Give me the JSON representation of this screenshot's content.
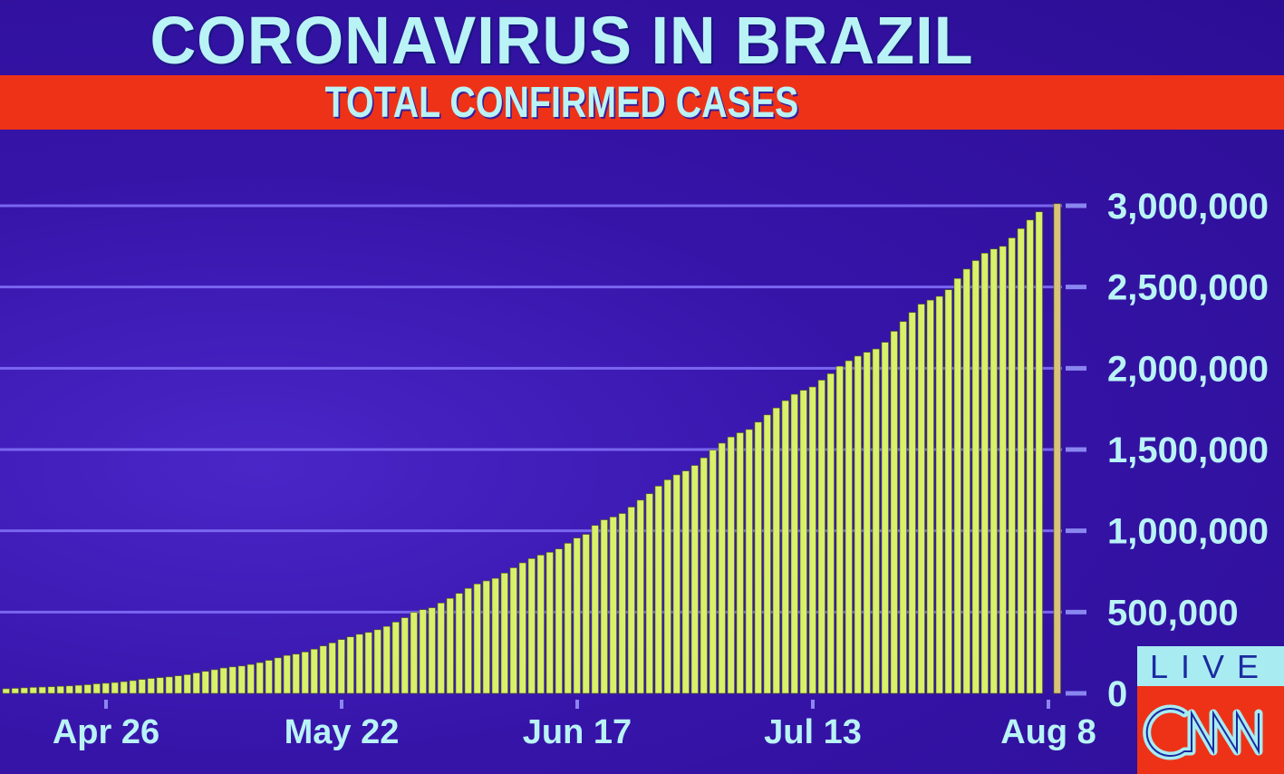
{
  "header": {
    "title": "CORONAVIRUS IN BRAZIL",
    "subtitle": "TOTAL CONFIRMED CASES"
  },
  "badge": {
    "live_label": "LIVE",
    "logo_text": "CNN"
  },
  "colors": {
    "background": "#3614a8",
    "band": "#ee3218",
    "text": "#b9f3f6",
    "bar": "#d8f06a",
    "highlight_bar": "#d9c27a",
    "grid": "#7a66f0"
  },
  "chart_data": {
    "type": "bar",
    "title": "CORONAVIRUS IN BRAZIL",
    "subtitle": "TOTAL CONFIRMED CASES",
    "xlabel": "",
    "ylabel": "",
    "ylim": [
      0,
      3000000
    ],
    "grid": true,
    "y_axis_side": "right",
    "yticks": [
      0,
      500000,
      1000000,
      1500000,
      2000000,
      2500000,
      3000000
    ],
    "ytick_labels": [
      "0",
      "500,000",
      "1,000,000",
      "1,500,000",
      "2,000,000",
      "2,500,000",
      "3,000,000"
    ],
    "xtick_labels": [
      "Apr 26",
      "May 22",
      "Jun 17",
      "Jul 13",
      "Aug 8"
    ],
    "highlight_last": true,
    "categories": [
      "Apr 15",
      "Apr 16",
      "Apr 17",
      "Apr 18",
      "Apr 19",
      "Apr 20",
      "Apr 21",
      "Apr 22",
      "Apr 23",
      "Apr 24",
      "Apr 25",
      "Apr 26",
      "Apr 27",
      "Apr 28",
      "Apr 29",
      "Apr 30",
      "May 1",
      "May 2",
      "May 3",
      "May 4",
      "May 5",
      "May 6",
      "May 7",
      "May 8",
      "May 9",
      "May 10",
      "May 11",
      "May 12",
      "May 13",
      "May 14",
      "May 15",
      "May 16",
      "May 17",
      "May 18",
      "May 19",
      "May 20",
      "May 21",
      "May 22",
      "May 23",
      "May 24",
      "May 25",
      "May 26",
      "May 27",
      "May 28",
      "May 29",
      "May 30",
      "May 31",
      "Jun 1",
      "Jun 2",
      "Jun 3",
      "Jun 4",
      "Jun 5",
      "Jun 6",
      "Jun 7",
      "Jun 8",
      "Jun 9",
      "Jun 10",
      "Jun 11",
      "Jun 12",
      "Jun 13",
      "Jun 14",
      "Jun 15",
      "Jun 16",
      "Jun 17",
      "Jun 18",
      "Jun 19",
      "Jun 20",
      "Jun 21",
      "Jun 22",
      "Jun 23",
      "Jun 24",
      "Jun 25",
      "Jun 26",
      "Jun 27",
      "Jun 28",
      "Jun 29",
      "Jun 30",
      "Jul 1",
      "Jul 2",
      "Jul 3",
      "Jul 4",
      "Jul 5",
      "Jul 6",
      "Jul 7",
      "Jul 8",
      "Jul 9",
      "Jul 10",
      "Jul 11",
      "Jul 12",
      "Jul 13",
      "Jul 14",
      "Jul 15",
      "Jul 16",
      "Jul 17",
      "Jul 18",
      "Jul 19",
      "Jul 20",
      "Jul 21",
      "Jul 22",
      "Jul 23",
      "Jul 24",
      "Jul 25",
      "Jul 26",
      "Jul 27",
      "Jul 28",
      "Jul 29",
      "Jul 30",
      "Jul 31",
      "Aug 1",
      "Aug 2",
      "Aug 3",
      "Aug 4",
      "Aug 5",
      "Aug 6",
      "Aug 7",
      "Aug 8"
    ],
    "values": [
      28320,
      30683,
      33682,
      36599,
      38654,
      40581,
      43079,
      45757,
      49492,
      52995,
      58509,
      61888,
      66501,
      71886,
      78162,
      85380,
      91589,
      96559,
      101147,
      107780,
      114715,
      125218,
      135106,
      145328,
      155939,
      162699,
      168331,
      177589,
      188974,
      202918,
      218223,
      233142,
      241080,
      254220,
      271628,
      291579,
      310087,
      330890,
      347398,
      363211,
      374898,
      391222,
      411821,
      438238,
      465166,
      498440,
      514849,
      526447,
      555383,
      584016,
      614941,
      645771,
      672846,
      691758,
      707412,
      739503,
      772416,
      802828,
      828810,
      850514,
      867624,
      888271,
      923189,
      955377,
      978142,
      1032913,
      1067579,
      1085038,
      1106470,
      1145906,
      1188631,
      1228114,
      1274974,
      1313667,
      1344143,
      1368195,
      1402041,
      1448753,
      1496858,
      1539081,
      1577004,
      1603055,
      1623284,
      1668589,
      1713160,
      1755779,
      1800827,
      1839850,
      1864681,
      1884967,
      1926824,
      1966748,
      2012151,
      2046328,
      2074860,
      2098389,
      2118646,
      2159654,
      2227514,
      2287475,
      2343366,
      2394513,
      2419091,
      2442375,
      2483191,
      2552265,
      2610102,
      2662485,
      2707877,
      2733677,
      2750318,
      2801921,
      2859073,
      2912212,
      2962442,
      3012412
    ]
  }
}
